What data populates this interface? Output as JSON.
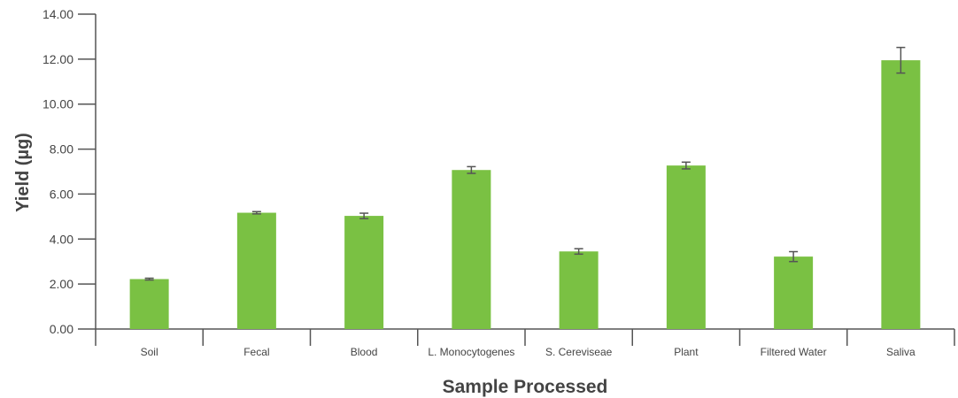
{
  "chart_data": {
    "type": "bar",
    "title": "",
    "xlabel": "Sample Processed",
    "ylabel": "Yield (µg)",
    "ylim": [
      0,
      14
    ],
    "yticks": [
      "0.00",
      "2.00",
      "4.00",
      "6.00",
      "8.00",
      "10.00",
      "12.00",
      "14.00"
    ],
    "categories": [
      "Soil",
      "Fecal",
      "Blood",
      "L. Monocytogenes",
      "S. Cereviseae",
      "Plant",
      "Filtered Water",
      "Saliva"
    ],
    "values": [
      2.22,
      5.17,
      5.03,
      7.07,
      3.45,
      7.27,
      3.22,
      11.95
    ],
    "errors": [
      0.04,
      0.05,
      0.12,
      0.15,
      0.12,
      0.15,
      0.22,
      0.57
    ],
    "bar_color": "#7ac143",
    "errorbar_color": "#555555",
    "axis_color": "#555555",
    "grid": false,
    "legend": "none"
  }
}
